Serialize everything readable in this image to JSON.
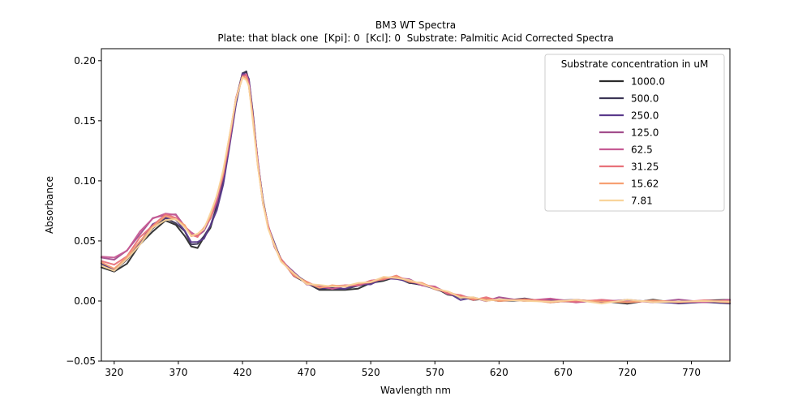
{
  "chart_data": {
    "type": "line",
    "title": "BM3 WT Spectra",
    "subtitle": "Plate: that black one  [Kpi]: 0  [Kcl]: 0  Substrate: Palmitic Acid Corrected Spectra",
    "xlabel": "Wavlength nm",
    "ylabel": "Absorbance",
    "xlim": [
      310,
      800
    ],
    "ylim": [
      -0.05,
      0.21
    ],
    "xticks": [
      320,
      370,
      420,
      470,
      520,
      570,
      620,
      670,
      720,
      770
    ],
    "xtick_labels": [
      "320",
      "370",
      "420",
      "470",
      "520",
      "570",
      "620",
      "670",
      "720",
      "770"
    ],
    "yticks": [
      -0.05,
      0.0,
      0.05,
      0.1,
      0.15,
      0.2
    ],
    "ytick_labels": [
      "−0.05",
      "0.00",
      "0.05",
      "0.10",
      "0.15",
      "0.20"
    ],
    "grid": false,
    "legend": {
      "title": "Substrate concentration in uM",
      "placement": "top-right"
    },
    "series": [
      {
        "name": "1000.0",
        "color": "#2b2b2b",
        "x": [
          310,
          320,
          330,
          340,
          350,
          360,
          368,
          375,
          380,
          385,
          390,
          395,
          400,
          405,
          410,
          415,
          420,
          423,
          425,
          428,
          432,
          436,
          440,
          445,
          450,
          460,
          470,
          480,
          490,
          500,
          510,
          520,
          530,
          540,
          550,
          560,
          570,
          580,
          590,
          600,
          610,
          620,
          640,
          660,
          680,
          700,
          720,
          740,
          760,
          780,
          800
        ],
        "y": [
          0.028,
          0.024,
          0.032,
          0.046,
          0.059,
          0.066,
          0.064,
          0.054,
          0.045,
          0.045,
          0.052,
          0.062,
          0.078,
          0.1,
          0.132,
          0.168,
          0.19,
          0.19,
          0.182,
          0.155,
          0.115,
          0.082,
          0.062,
          0.046,
          0.034,
          0.022,
          0.014,
          0.01,
          0.009,
          0.009,
          0.011,
          0.014,
          0.018,
          0.019,
          0.016,
          0.013,
          0.011,
          0.006,
          0.003,
          0.002,
          0.001,
          0.001,
          0.0,
          0.0,
          0.0,
          -0.001,
          -0.001,
          0.0,
          -0.001,
          0.0,
          0.001
        ]
      },
      {
        "name": "500.0",
        "color": "#3c3555",
        "x": [
          310,
          320,
          330,
          340,
          350,
          360,
          368,
          375,
          380,
          385,
          390,
          395,
          400,
          405,
          410,
          415,
          420,
          423,
          425,
          428,
          432,
          436,
          440,
          445,
          450,
          460,
          470,
          480,
          490,
          500,
          510,
          520,
          530,
          540,
          550,
          560,
          570,
          580,
          590,
          600,
          610,
          620,
          640,
          660,
          680,
          700,
          720,
          740,
          760,
          780,
          800
        ],
        "y": [
          0.03,
          0.026,
          0.034,
          0.048,
          0.061,
          0.068,
          0.066,
          0.057,
          0.048,
          0.047,
          0.054,
          0.063,
          0.078,
          0.099,
          0.131,
          0.167,
          0.189,
          0.191,
          0.184,
          0.157,
          0.116,
          0.083,
          0.063,
          0.047,
          0.035,
          0.023,
          0.015,
          0.011,
          0.01,
          0.011,
          0.012,
          0.015,
          0.018,
          0.019,
          0.016,
          0.013,
          0.011,
          0.006,
          0.003,
          0.002,
          0.001,
          0.001,
          0.001,
          0.0,
          0.0,
          0.0,
          -0.001,
          0.0,
          -0.001,
          -0.002,
          -0.001
        ]
      },
      {
        "name": "250.0",
        "color": "#5a3a8c",
        "x": [
          310,
          320,
          330,
          340,
          350,
          360,
          368,
          375,
          380,
          385,
          390,
          395,
          400,
          405,
          410,
          415,
          420,
          423,
          425,
          428,
          432,
          436,
          440,
          445,
          450,
          460,
          470,
          480,
          490,
          500,
          510,
          520,
          530,
          540,
          550,
          560,
          570,
          580,
          590,
          600,
          610,
          620,
          640,
          660,
          680,
          700,
          720,
          740,
          760,
          780,
          800
        ],
        "y": [
          0.031,
          0.027,
          0.035,
          0.05,
          0.063,
          0.07,
          0.068,
          0.058,
          0.05,
          0.048,
          0.053,
          0.062,
          0.076,
          0.097,
          0.129,
          0.165,
          0.188,
          0.19,
          0.184,
          0.157,
          0.116,
          0.083,
          0.063,
          0.047,
          0.035,
          0.023,
          0.015,
          0.011,
          0.01,
          0.011,
          0.013,
          0.015,
          0.018,
          0.019,
          0.016,
          0.013,
          0.011,
          0.006,
          0.002,
          0.002,
          0.001,
          0.001,
          0.001,
          0.001,
          0.0,
          0.0,
          0.0,
          0.0,
          -0.002,
          -0.001,
          -0.001
        ]
      },
      {
        "name": "125.0",
        "color": "#a24d8d",
        "x": [
          310,
          320,
          330,
          340,
          350,
          360,
          368,
          375,
          380,
          385,
          390,
          395,
          400,
          405,
          410,
          415,
          420,
          423,
          425,
          428,
          432,
          436,
          440,
          445,
          450,
          460,
          470,
          480,
          490,
          500,
          510,
          520,
          530,
          540,
          550,
          560,
          570,
          580,
          590,
          600,
          610,
          620,
          640,
          660,
          680,
          700,
          720,
          740,
          760,
          780,
          800
        ],
        "y": [
          0.037,
          0.034,
          0.042,
          0.056,
          0.068,
          0.073,
          0.071,
          0.063,
          0.055,
          0.054,
          0.059,
          0.068,
          0.083,
          0.103,
          0.134,
          0.168,
          0.188,
          0.189,
          0.182,
          0.155,
          0.115,
          0.082,
          0.062,
          0.046,
          0.034,
          0.023,
          0.015,
          0.012,
          0.011,
          0.012,
          0.013,
          0.016,
          0.019,
          0.02,
          0.017,
          0.014,
          0.011,
          0.007,
          0.004,
          0.002,
          0.001,
          0.002,
          0.001,
          0.001,
          0.0,
          0.0,
          0.0,
          0.0,
          0.0,
          0.0,
          0.0
        ]
      },
      {
        "name": "62.5",
        "color": "#c65b94",
        "x": [
          310,
          320,
          330,
          340,
          350,
          360,
          368,
          375,
          380,
          385,
          390,
          395,
          400,
          405,
          410,
          415,
          420,
          423,
          425,
          428,
          432,
          436,
          440,
          445,
          450,
          460,
          470,
          480,
          490,
          500,
          510,
          520,
          530,
          540,
          550,
          560,
          570,
          580,
          590,
          600,
          610,
          620,
          640,
          660,
          680,
          700,
          720,
          740,
          760,
          780,
          800
        ],
        "y": [
          0.038,
          0.035,
          0.043,
          0.057,
          0.069,
          0.073,
          0.071,
          0.063,
          0.056,
          0.055,
          0.06,
          0.069,
          0.084,
          0.104,
          0.135,
          0.168,
          0.187,
          0.188,
          0.181,
          0.154,
          0.114,
          0.082,
          0.062,
          0.046,
          0.034,
          0.023,
          0.015,
          0.012,
          0.011,
          0.012,
          0.014,
          0.016,
          0.019,
          0.02,
          0.017,
          0.014,
          0.011,
          0.007,
          0.004,
          0.002,
          0.002,
          0.001,
          0.001,
          0.001,
          0.0,
          0.0,
          0.0,
          0.0,
          -0.001,
          0.0,
          0.0
        ]
      },
      {
        "name": "31.25",
        "color": "#e8727a",
        "x": [
          310,
          320,
          330,
          340,
          350,
          360,
          368,
          375,
          380,
          385,
          390,
          395,
          400,
          405,
          410,
          415,
          420,
          423,
          425,
          428,
          432,
          436,
          440,
          445,
          450,
          460,
          470,
          480,
          490,
          500,
          510,
          520,
          530,
          540,
          550,
          560,
          570,
          580,
          590,
          600,
          610,
          620,
          640,
          660,
          680,
          700,
          720,
          740,
          760,
          780,
          800
        ],
        "y": [
          0.033,
          0.03,
          0.038,
          0.052,
          0.064,
          0.071,
          0.07,
          0.062,
          0.055,
          0.054,
          0.06,
          0.07,
          0.086,
          0.106,
          0.136,
          0.169,
          0.187,
          0.187,
          0.18,
          0.153,
          0.114,
          0.082,
          0.062,
          0.046,
          0.034,
          0.022,
          0.015,
          0.012,
          0.012,
          0.013,
          0.014,
          0.016,
          0.019,
          0.02,
          0.017,
          0.014,
          0.011,
          0.007,
          0.004,
          0.002,
          0.002,
          0.001,
          0.001,
          0.0,
          0.0,
          0.0,
          0.0,
          -0.001,
          0.0,
          0.0,
          0.0
        ]
      },
      {
        "name": "15.62",
        "color": "#f7a072",
        "x": [
          310,
          320,
          330,
          340,
          350,
          360,
          368,
          375,
          380,
          385,
          390,
          395,
          400,
          405,
          410,
          415,
          420,
          423,
          425,
          428,
          432,
          436,
          440,
          445,
          450,
          460,
          470,
          480,
          490,
          500,
          510,
          520,
          530,
          540,
          550,
          560,
          570,
          580,
          590,
          600,
          610,
          620,
          640,
          660,
          680,
          700,
          720,
          740,
          760,
          780,
          800
        ],
        "y": [
          0.031,
          0.028,
          0.036,
          0.05,
          0.062,
          0.07,
          0.069,
          0.062,
          0.055,
          0.055,
          0.061,
          0.071,
          0.087,
          0.108,
          0.137,
          0.169,
          0.186,
          0.186,
          0.179,
          0.152,
          0.113,
          0.081,
          0.062,
          0.046,
          0.034,
          0.022,
          0.015,
          0.012,
          0.012,
          0.013,
          0.014,
          0.016,
          0.019,
          0.02,
          0.017,
          0.014,
          0.011,
          0.007,
          0.004,
          0.002,
          0.001,
          0.001,
          0.0,
          0.0,
          0.0,
          0.0,
          -0.001,
          0.0,
          0.0,
          -0.001,
          0.0
        ]
      },
      {
        "name": "7.81",
        "color": "#f9d49b",
        "x": [
          310,
          320,
          330,
          340,
          350,
          360,
          368,
          375,
          380,
          385,
          390,
          395,
          400,
          405,
          410,
          415,
          420,
          423,
          425,
          428,
          432,
          436,
          440,
          445,
          450,
          460,
          470,
          480,
          490,
          500,
          510,
          520,
          530,
          540,
          550,
          560,
          570,
          580,
          590,
          600,
          610,
          620,
          640,
          660,
          680,
          700,
          720,
          740,
          760,
          780,
          800
        ],
        "y": [
          0.029,
          0.026,
          0.034,
          0.048,
          0.06,
          0.068,
          0.068,
          0.061,
          0.055,
          0.055,
          0.061,
          0.072,
          0.088,
          0.109,
          0.138,
          0.169,
          0.185,
          0.185,
          0.178,
          0.151,
          0.112,
          0.081,
          0.061,
          0.045,
          0.034,
          0.022,
          0.015,
          0.013,
          0.012,
          0.013,
          0.014,
          0.017,
          0.019,
          0.02,
          0.017,
          0.014,
          0.011,
          0.007,
          0.004,
          0.002,
          0.001,
          0.001,
          0.0,
          0.0,
          0.0,
          -0.001,
          0.0,
          0.0,
          -0.001,
          0.0,
          0.0
        ]
      }
    ]
  }
}
